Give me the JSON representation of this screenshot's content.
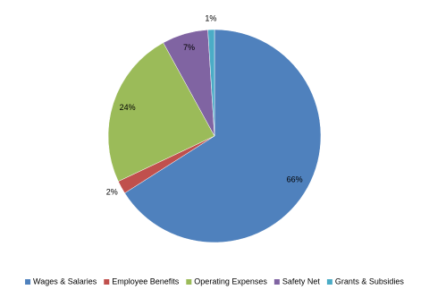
{
  "chart_data": {
    "type": "pie",
    "categories": [
      "Wages & Salaries",
      "Employee Benefits",
      "Operating Expenses",
      "Safety Net",
      "Grants & Subsidies"
    ],
    "values": [
      66,
      2,
      24,
      7,
      1
    ],
    "value_labels": [
      "66%",
      "2%",
      "24%",
      "7%",
      "1%"
    ],
    "colors": [
      "#4f81bd",
      "#c0504d",
      "#9bbb59",
      "#8064a2",
      "#4bacc6"
    ],
    "legend": "bottom"
  }
}
